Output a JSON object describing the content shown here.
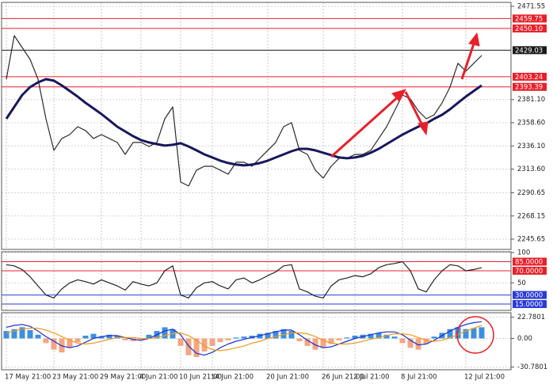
{
  "chart_data": [
    {
      "type": "line",
      "grid": true,
      "ylim": [
        2235.7,
        2475.4
      ],
      "yticks": [
        2471.55,
        {
          "value": 2381.1,
          "label": "2381.10"
        },
        {
          "value": 2358.6,
          "label": "2358.60"
        },
        {
          "value": 2336.1,
          "label": "2336.10"
        },
        {
          "value": 2313.6,
          "label": "2313.60"
        },
        2290.65,
        2268.15,
        2245.65
      ],
      "levels": [
        {
          "value": 2459.75,
          "label": "2459.75",
          "color": "#e8202a"
        },
        {
          "value": 2450.1,
          "label": "2450.10",
          "color": "#e8202a"
        },
        {
          "value": 2429.03,
          "label": "2429.03",
          "color": "#1a1a1a"
        },
        {
          "value": 2403.24,
          "label": "2403.24",
          "color": "#e8202a"
        },
        {
          "value": 2393.39,
          "label": "2393.39",
          "color": "#e8202a"
        }
      ],
      "series": [
        {
          "color": "#2a2a2a",
          "values": [
            2400.9,
            2443.1,
            2431.6,
            2420.1,
            2400.9,
            2362.5,
            2331.8,
            2343.3,
            2347.1,
            2354.8,
            2351.0,
            2343.3,
            2347.1,
            2343.3,
            2339.5,
            2327.9,
            2339.5,
            2339.5,
            2335.6,
            2339.5,
            2362.5,
            2374.0,
            2301.1,
            2297.2,
            2312.6,
            2316.4,
            2316.4,
            2312.6,
            2308.7,
            2320.3,
            2320.3,
            2316.4,
            2324.1,
            2331.8,
            2339.5,
            2354.8,
            2358.7,
            2331.8,
            2327.9,
            2312.6,
            2304.9,
            2316.4,
            2324.1,
            2324.1,
            2327.9,
            2327.9,
            2331.8,
            2343.3,
            2354.8,
            2370.2,
            2385.5,
            2381.7,
            2370.2,
            2362.5,
            2366.3,
            2377.9,
            2393.2,
            2416.3,
            2408.6,
            2416.3,
            2423.9,
            null,
            null,
            null
          ]
        },
        {
          "color": "#17175e",
          "values": [
            2362.5,
            2374.0,
            2385.5,
            2393.2,
            2397.8,
            2400.9,
            2399.4,
            2394.8,
            2389.4,
            2384.0,
            2377.9,
            2372.5,
            2367.1,
            2361.0,
            2354.8,
            2350.2,
            2345.6,
            2341.8,
            2339.5,
            2337.9,
            2336.4,
            2337.2,
            2338.7,
            2335.6,
            2331.8,
            2327.9,
            2324.9,
            2321.8,
            2319.5,
            2318.0,
            2317.2,
            2318.0,
            2319.5,
            2321.8,
            2324.9,
            2327.9,
            2331.0,
            2333.3,
            2333.3,
            2331.8,
            2329.5,
            2327.2,
            2324.9,
            2324.1,
            2324.9,
            2326.4,
            2329.5,
            2333.3,
            2337.9,
            2342.5,
            2347.1,
            2351.0,
            2354.8,
            2357.9,
            2362.5,
            2366.3,
            2371.7,
            2377.9,
            2384.0,
            2389.4,
            2394.8,
            null,
            null,
            null
          ]
        }
      ]
    },
    {
      "type": "line",
      "grid": true,
      "ylim": [
        4.6,
        101.3
      ],
      "yticks": [
        100,
        50
      ],
      "levels": [
        {
          "value": 85,
          "label": "85.0000",
          "color": "#e8202a"
        },
        {
          "value": 70,
          "label": "70.0000",
          "color": "#e8202a"
        },
        {
          "value": 30,
          "label": "30.0000",
          "color": "#2a3bd8"
        },
        {
          "value": 15,
          "label": "15.0000",
          "color": "#2a3bd8"
        }
      ],
      "series": [
        {
          "color": "#222222",
          "values": [
            80,
            78,
            72,
            60,
            45,
            30,
            25,
            40,
            50,
            55,
            52,
            48,
            55,
            50,
            45,
            38,
            52,
            48,
            45,
            50,
            70,
            78,
            30,
            25,
            42,
            50,
            52,
            45,
            40,
            55,
            58,
            50,
            55,
            62,
            68,
            78,
            80,
            40,
            35,
            28,
            25,
            45,
            55,
            58,
            62,
            60,
            65,
            75,
            80,
            82,
            85,
            70,
            40,
            35,
            55,
            70,
            80,
            78,
            70,
            72,
            75,
            null,
            null,
            null
          ]
        }
      ]
    },
    {
      "type": "bar",
      "grid": true,
      "ylim": [
        -33.6,
        27.6
      ],
      "yticks": [
        22.7801,
        {
          "value": 0,
          "label": "0.00"
        },
        -30.7801
      ],
      "color": "#3d8fe0",
      "negative_color": "#f4a582",
      "categories": [
        "17 May 21:00",
        null,
        null,
        null,
        null,
        null,
        "23 May 21:00",
        null,
        null,
        null,
        null,
        null,
        "29 May 21:00",
        null,
        null,
        null,
        null,
        "4 Jun 21:00",
        null,
        null,
        null,
        null,
        "10 Jun 21:00",
        null,
        null,
        null,
        "14 Jun 21:00",
        null,
        null,
        null,
        null,
        null,
        null,
        "20 Jun 21:00",
        null,
        null,
        null,
        null,
        null,
        null,
        "26 Jun 21:00",
        null,
        null,
        null,
        "2 Jul 21:00",
        null,
        null,
        null,
        null,
        null,
        "8 Jul 21:00",
        null,
        null,
        null,
        null,
        null,
        null,
        null,
        "12 Jul 21:00",
        null,
        null,
        null,
        null,
        null
      ],
      "values": [
        8,
        10,
        12,
        9,
        4,
        -5,
        -12,
        -15,
        -10,
        -4,
        3,
        5,
        2,
        4,
        3,
        -2,
        -3,
        -2,
        4,
        8,
        12,
        10,
        -8,
        -18,
        -20,
        -14,
        -8,
        -4,
        -2,
        1,
        2,
        3,
        5,
        6,
        8,
        10,
        8,
        -3,
        -8,
        -12,
        -10,
        -6,
        -2,
        1,
        3,
        4,
        5,
        6,
        4,
        2,
        -5,
        -10,
        -12,
        -6,
        2,
        6,
        10,
        12,
        10,
        11,
        12,
        null,
        null,
        null
      ],
      "series": [
        {
          "color": "#1c2fd0",
          "values": [
            12,
            14,
            15,
            13,
            8,
            2,
            -3,
            -8,
            -10,
            -8,
            -4,
            0,
            2,
            3,
            3,
            1,
            -1,
            -2,
            0,
            4,
            8,
            10,
            4,
            -8,
            -16,
            -18,
            -15,
            -10,
            -6,
            -3,
            -1,
            1,
            3,
            5,
            7,
            9,
            9,
            4,
            -2,
            -7,
            -10,
            -9,
            -6,
            -3,
            0,
            2,
            4,
            6,
            7,
            7,
            4,
            -2,
            -7,
            -6,
            -2,
            3,
            8,
            12,
            15,
            17,
            18,
            null,
            null,
            null
          ]
        },
        {
          "color": "#f09a1a",
          "values": [
            6,
            8,
            10,
            11,
            11,
            9,
            6,
            2,
            -2,
            -5,
            -6,
            -5,
            -3,
            -1,
            1,
            1,
            1,
            0,
            0,
            1,
            3,
            5,
            6,
            3,
            -2,
            -8,
            -12,
            -13,
            -12,
            -10,
            -8,
            -5,
            -3,
            0,
            2,
            4,
            6,
            6,
            5,
            2,
            -2,
            -5,
            -6,
            -6,
            -5,
            -3,
            -1,
            1,
            3,
            5,
            5,
            4,
            1,
            -2,
            -3,
            -2,
            1,
            4,
            8,
            11,
            14,
            null,
            null,
            null
          ]
        }
      ]
    }
  ]
}
